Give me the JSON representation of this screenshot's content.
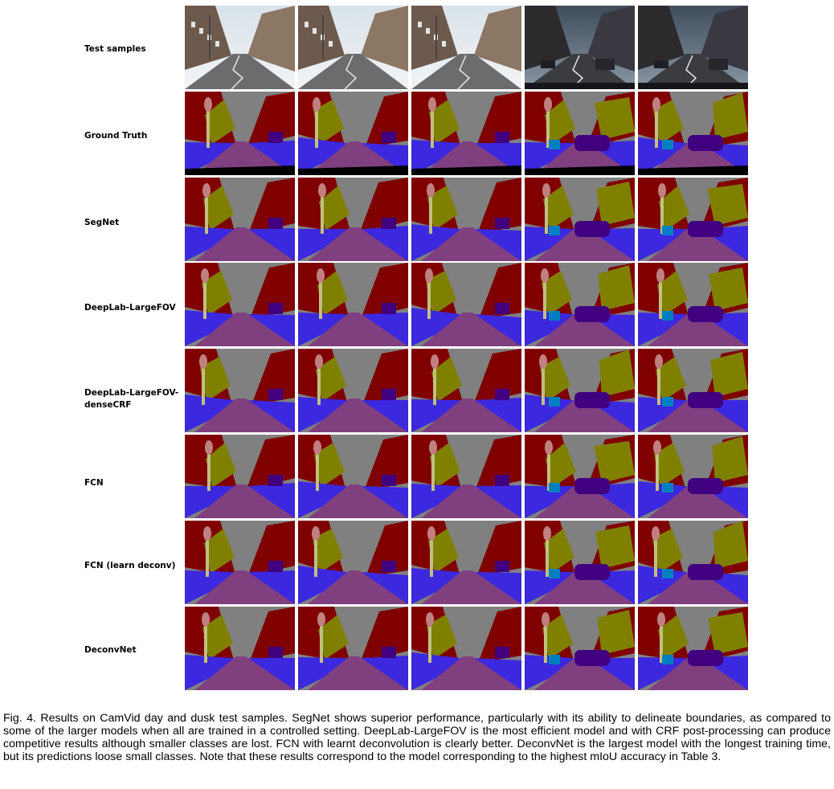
{
  "figure": {
    "rows": [
      {
        "key": "test",
        "label": "Test samples"
      },
      {
        "key": "gt",
        "label": "Ground Truth"
      },
      {
        "key": "segnet",
        "label": "SegNet"
      },
      {
        "key": "deeplab",
        "label": "DeepLab-LargeFOV"
      },
      {
        "key": "deeplabcrf",
        "label": "DeepLab-LargeFOV-denseCRF"
      },
      {
        "key": "fcn",
        "label": "FCN"
      },
      {
        "key": "fcnld",
        "label": "FCN (learn deconv)"
      },
      {
        "key": "deconvnet",
        "label": "DeconvNet"
      }
    ],
    "samples": [
      "day",
      "day",
      "day",
      "dusk",
      "dusk"
    ],
    "class_colors": {
      "building": "#800000",
      "sky": "#808080",
      "tree": "#808000",
      "road": "#804080",
      "pavement": "#3c28de",
      "car": "#400080",
      "pole": "#c0c080",
      "sign": "#c08080",
      "pedestrian": "#404000",
      "fence": "#404080",
      "bicyclist": "#0080c0",
      "void": "#000000"
    }
  },
  "caption": "Fig. 4. Results on CamVid day and dusk test samples. SegNet shows superior performance, particularly with its ability to delineate boundaries, as compared to some of the larger models when all are trained in a controlled setting. DeepLab-LargeFOV is the most efficient model and with CRF post-processing can produce competitive results although smaller classes are lost. FCN with learnt deconvolution is clearly better. DeconvNet is the largest model with the longest training time, but its predictions loose small classes. Note that these results correspond to the model corresponding to the highest mIoU accuracy in Table 3."
}
